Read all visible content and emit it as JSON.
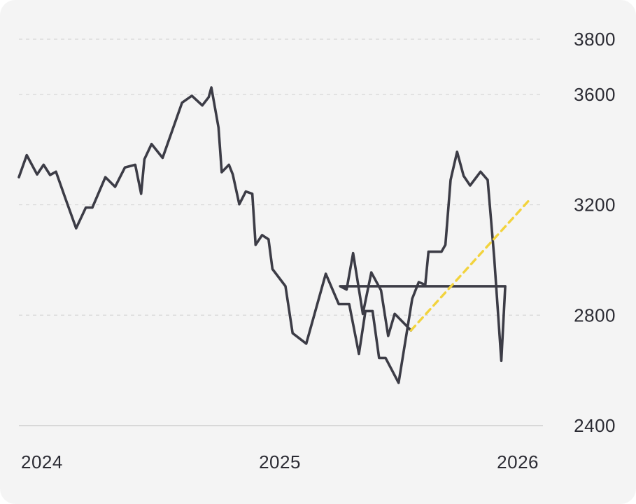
{
  "chart_data": {
    "type": "line",
    "title": "",
    "xlabel": "",
    "ylabel": "",
    "x_ticks": [
      "2024",
      "2025",
      "2026"
    ],
    "y_ticks": [
      2400,
      2800,
      3200,
      3600,
      3800
    ],
    "ylim": [
      2400,
      3800
    ],
    "xlim": [
      "2023-12-15",
      "2026-02-28"
    ],
    "grid": "horizontal-dashed",
    "legend": "none",
    "colors": {
      "history": "#3c3c46",
      "forecast": "#f2d33d",
      "grid": "#d6d6d6",
      "axis": "#cfcfcf",
      "background": "#f4f4f4"
    },
    "series": [
      {
        "role": "history",
        "style": "solid",
        "points": [
          [
            "2023-12-15",
            3300
          ],
          [
            "2023-12-27",
            3380
          ],
          [
            "2024-01-12",
            3310
          ],
          [
            "2024-01-22",
            3345
          ],
          [
            "2024-02-01",
            3308
          ],
          [
            "2024-02-10",
            3320
          ],
          [
            "2024-02-25",
            3220
          ],
          [
            "2024-03-12",
            3115
          ],
          [
            "2024-03-27",
            3190
          ],
          [
            "2024-04-06",
            3190
          ],
          [
            "2024-04-26",
            3300
          ],
          [
            "2024-05-11",
            3265
          ],
          [
            "2024-05-26",
            3335
          ],
          [
            "2024-06-11",
            3345
          ],
          [
            "2024-06-20",
            3240
          ],
          [
            "2024-06-25",
            3365
          ],
          [
            "2024-07-06",
            3420
          ],
          [
            "2024-07-23",
            3370
          ],
          [
            "2024-08-07",
            3470
          ],
          [
            "2024-08-22",
            3570
          ],
          [
            "2024-09-06",
            3595
          ],
          [
            "2024-09-22",
            3560
          ],
          [
            "2024-10-02",
            3590
          ],
          [
            "2024-10-06",
            3625
          ],
          [
            "2024-10-17",
            3480
          ],
          [
            "2024-10-22",
            3318
          ],
          [
            "2024-11-02",
            3345
          ],
          [
            "2024-11-08",
            3310
          ],
          [
            "2024-11-18",
            3202
          ],
          [
            "2024-11-28",
            3248
          ],
          [
            "2024-12-08",
            3240
          ],
          [
            "2024-12-13",
            3055
          ],
          [
            "2024-12-23",
            3090
          ],
          [
            "2025-01-02",
            3075
          ],
          [
            "2025-01-08",
            2967
          ],
          [
            "2025-01-28",
            2905
          ],
          [
            "2025-02-08",
            2735
          ],
          [
            "2025-03-01",
            2697
          ],
          [
            "2025-03-31",
            2950
          ],
          [
            "2025-04-20",
            2840
          ],
          [
            "2025-05-06",
            2840
          ],
          [
            "2025-05-21",
            2660
          ],
          [
            "2025-05-31",
            2815
          ],
          [
            "2025-06-11",
            2815
          ],
          [
            "2025-06-21",
            2645
          ],
          [
            "2025-06-31",
            2645
          ],
          [
            "2025-07-21",
            2555
          ],
          [
            "2025-08-11",
            2860
          ],
          [
            "2025-08-21",
            2920
          ],
          [
            "2025-08-31",
            2910
          ],
          [
            "2025-09-05",
            3030
          ],
          [
            "2025-09-15",
            3030
          ],
          [
            "2025-09-25",
            3030
          ],
          [
            "2025-10-01",
            3055
          ],
          [
            "2025-10-09",
            3290
          ],
          [
            "2025-10-19",
            3392
          ],
          [
            "2025-10-29",
            3305
          ],
          [
            "2025-11-08",
            3270
          ],
          [
            "2025-11-24",
            3320
          ],
          [
            "2025-12-05",
            3290
          ],
          [
            "2025-12-15",
            3010
          ],
          [
            "2025-12-26",
            2635
          ],
          [
            "2026-01-01",
            2905
          ]
        ]
      }
    ],
    "tail_points_note": "",
    "history_tail": [
      [
        "2025-04-22",
        2905
      ],
      [
        "2025-05-02",
        2893
      ],
      [
        "2025-05-12",
        3025
      ],
      [
        "2025-05-27",
        2805
      ],
      [
        "2025-06-09",
        2955
      ],
      [
        "2025-06-24",
        2890
      ],
      [
        "2025-07-05",
        2725
      ],
      [
        "2025-07-15",
        2805
      ],
      [
        "2025-08-09",
        2745
      ]
    ],
    "forecast": [
      [
        "2025-08-09",
        2745
      ],
      [
        "2026-02-10",
        3225
      ]
    ]
  }
}
